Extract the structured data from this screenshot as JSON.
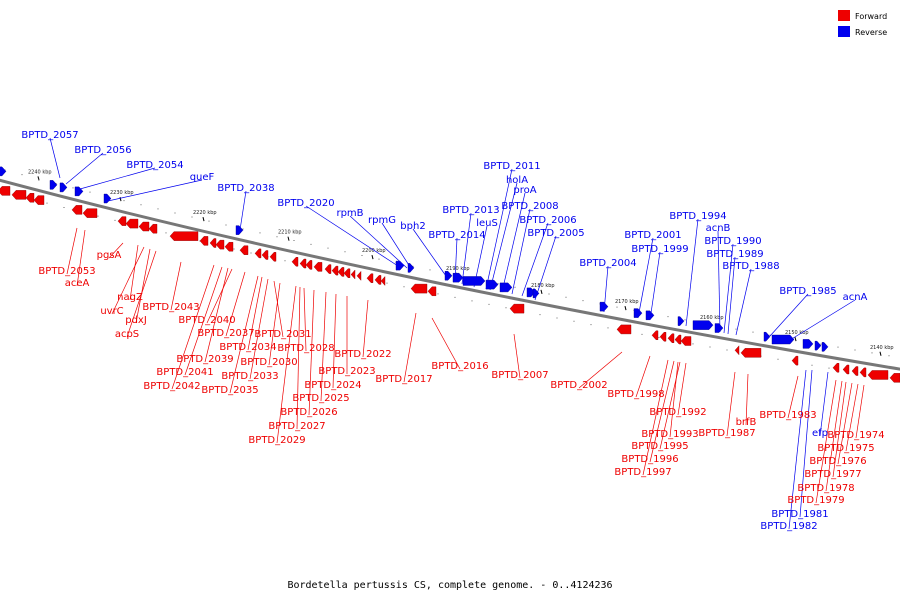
{
  "caption": "Bordetella pertussis CS, complete genome. - 0..4124236",
  "legend": {
    "forward_label": "Forward",
    "reverse_label": "Reverse",
    "forward_color": "#ee0000",
    "reverse_color": "#0000ee"
  },
  "ticks": [
    "2240 kbp",
    "2230 kbp",
    "2220 kbp",
    "2210 kbp",
    "2200 kbp",
    "2190 kbp",
    "2180 kbp",
    "2170 kbp",
    "2160 kbp",
    "2150 kbp",
    "2140 kbp"
  ],
  "reverse_genes": [
    "BPTD_2057",
    "BPTD_2056",
    "BPTD_2054",
    "queF",
    "BPTD_2038",
    "BPTD_2020",
    "rpmB",
    "rpmG",
    "bph2",
    "BPTD_2014",
    "BPTD_2013",
    "leuS",
    "holA",
    "BPTD_2011",
    "proA",
    "BPTD_2008",
    "BPTD_2006",
    "BPTD_2005",
    "BPTD_2004",
    "BPTD_2001",
    "BPTD_1999",
    "BPTD_1994",
    "acnB",
    "BPTD_1990",
    "BPTD_1989",
    "BPTD_1988",
    "BPTD_1985",
    "acnA",
    "efp",
    "BPTD_1981",
    "BPTD_1982"
  ],
  "forward_genes": [
    "BPTD_2053",
    "aceA",
    "pgsA",
    "nagZ",
    "uvrC",
    "pdxJ",
    "acpS",
    "BPTD_2043",
    "BPTD_2042",
    "BPTD_2041",
    "BPTD_2040",
    "BPTD_2039",
    "BPTD_2037",
    "BPTD_2035",
    "BPTD_2034",
    "BPTD_2033",
    "BPTD_2031",
    "BPTD_2030",
    "BPTD_2029",
    "BPTD_2028",
    "BPTD_2027",
    "BPTD_2026",
    "BPTD_2025",
    "BPTD_2024",
    "BPTD_2023",
    "BPTD_2022",
    "BPTD_2017",
    "BPTD_2016",
    "BPTD_2007",
    "BPTD_2002",
    "BPTD_1998",
    "BPTD_1997",
    "BPTD_1996",
    "BPTD_1995",
    "BPTD_1993",
    "BPTD_1992",
    "BPTD_1987",
    "brfB",
    "BPTD_1983",
    "BPTD_1979",
    "BPTD_1978",
    "BPTD_1977",
    "BPTD_1976",
    "BPTD_1975",
    "BPTD_1974"
  ]
}
